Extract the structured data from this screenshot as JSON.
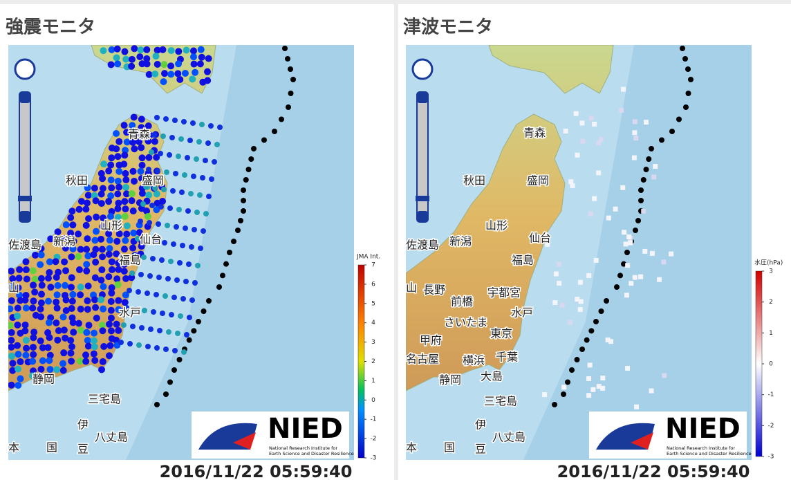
{
  "panels": [
    {
      "title": "強震モニタ",
      "places": [
        "青森",
        "秋田",
        "盛岡",
        "山形",
        "仙台",
        "佐渡島",
        "新潟",
        "福島",
        "山",
        "水戸",
        "静岡",
        "三宅島",
        "伊",
        "豆",
        "八丈島",
        "本",
        "国"
      ],
      "colorbar": {
        "label": "JMA Int.",
        "ticks": [
          -3,
          -2,
          -1,
          0,
          1,
          2,
          3,
          4,
          5,
          6,
          7
        ]
      },
      "logo": {
        "name": "NIED",
        "subtitle": [
          "National Research Institute for",
          "Earth Science and Disaster Resilience"
        ]
      },
      "timestamp": "2016/11/22 05:59:40"
    },
    {
      "title": "津波モニタ",
      "places": [
        "青森",
        "秋田",
        "盛岡",
        "山形",
        "仙台",
        "佐渡島",
        "新潟",
        "福島",
        "山",
        "長野",
        "宇都宮",
        "前橋",
        "水戸",
        "さいたま",
        "甲府",
        "東京",
        "名古屋",
        "横浜",
        "千葉",
        "静岡",
        "大島",
        "三宅島",
        "伊",
        "豆",
        "八丈島",
        "本",
        "国"
      ],
      "colorbar": {
        "label": "水圧(hPa)",
        "ticks": [
          -3,
          -2,
          -1,
          0,
          1,
          2,
          3
        ]
      },
      "logo": {
        "name": "NIED",
        "subtitle": [
          "National Research Institute for",
          "Earth Science and Disaster Resilience"
        ]
      },
      "timestamp": "2016/11/22 05:59:40"
    }
  ]
}
